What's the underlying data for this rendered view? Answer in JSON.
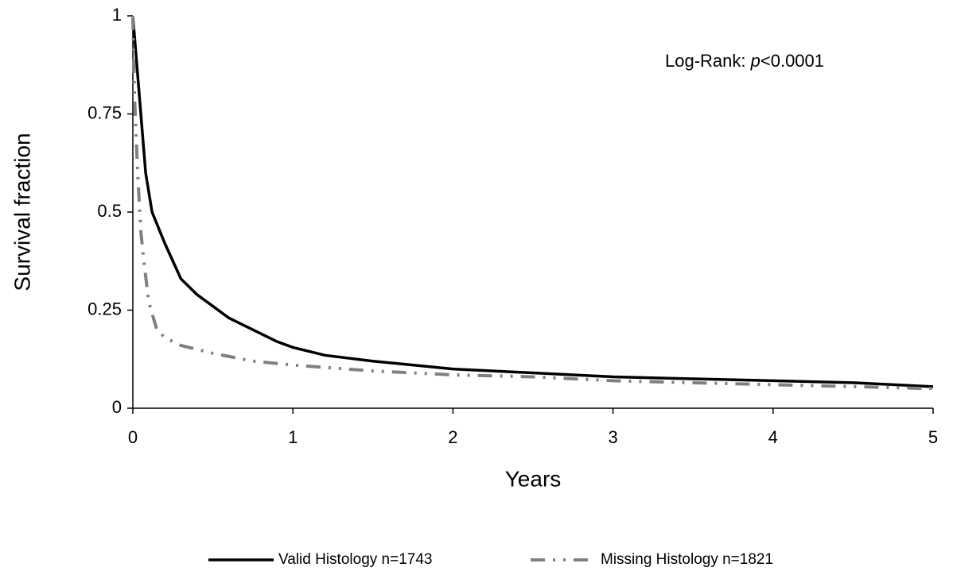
{
  "chart_data": {
    "type": "line",
    "x_label": "Years",
    "y_label": "Survival fraction",
    "annotation": [
      "Log-Rank: ",
      "p",
      "<0.0001"
    ],
    "xlim": [
      0,
      5
    ],
    "xticks": [
      0,
      1,
      2,
      3,
      4,
      5
    ],
    "ylim": [
      0,
      1
    ],
    "yticks": [
      0,
      0.25,
      0.5,
      0.75,
      1
    ],
    "grid": false,
    "legend": "bottom",
    "series": [
      {
        "name": "Valid Histology n=1743",
        "color": "#000000",
        "dash": "solid",
        "x": [
          0,
          0.02,
          0.05,
          0.08,
          0.12,
          0.2,
          0.3,
          0.4,
          0.5,
          0.6,
          0.75,
          0.9,
          1.0,
          1.2,
          1.5,
          1.75,
          2.0,
          2.5,
          3.0,
          3.5,
          4.0,
          4.5,
          5.0
        ],
        "values": [
          1.0,
          0.9,
          0.75,
          0.6,
          0.5,
          0.42,
          0.33,
          0.29,
          0.26,
          0.23,
          0.2,
          0.17,
          0.155,
          0.135,
          0.12,
          0.11,
          0.1,
          0.09,
          0.08,
          0.075,
          0.07,
          0.065,
          0.055
        ]
      },
      {
        "name": "Missing Histology n=1821",
        "color": "#808080",
        "dash": "dash-dot-dot",
        "x": [
          0,
          0.01,
          0.03,
          0.05,
          0.07,
          0.1,
          0.15,
          0.2,
          0.3,
          0.4,
          0.5,
          0.75,
          1.0,
          1.5,
          2.0,
          2.5,
          3.0,
          3.5,
          4.0,
          4.5,
          5.0
        ],
        "values": [
          1.0,
          0.8,
          0.6,
          0.45,
          0.37,
          0.27,
          0.2,
          0.18,
          0.16,
          0.15,
          0.14,
          0.12,
          0.11,
          0.095,
          0.085,
          0.08,
          0.07,
          0.065,
          0.06,
          0.055,
          0.05
        ]
      }
    ]
  }
}
